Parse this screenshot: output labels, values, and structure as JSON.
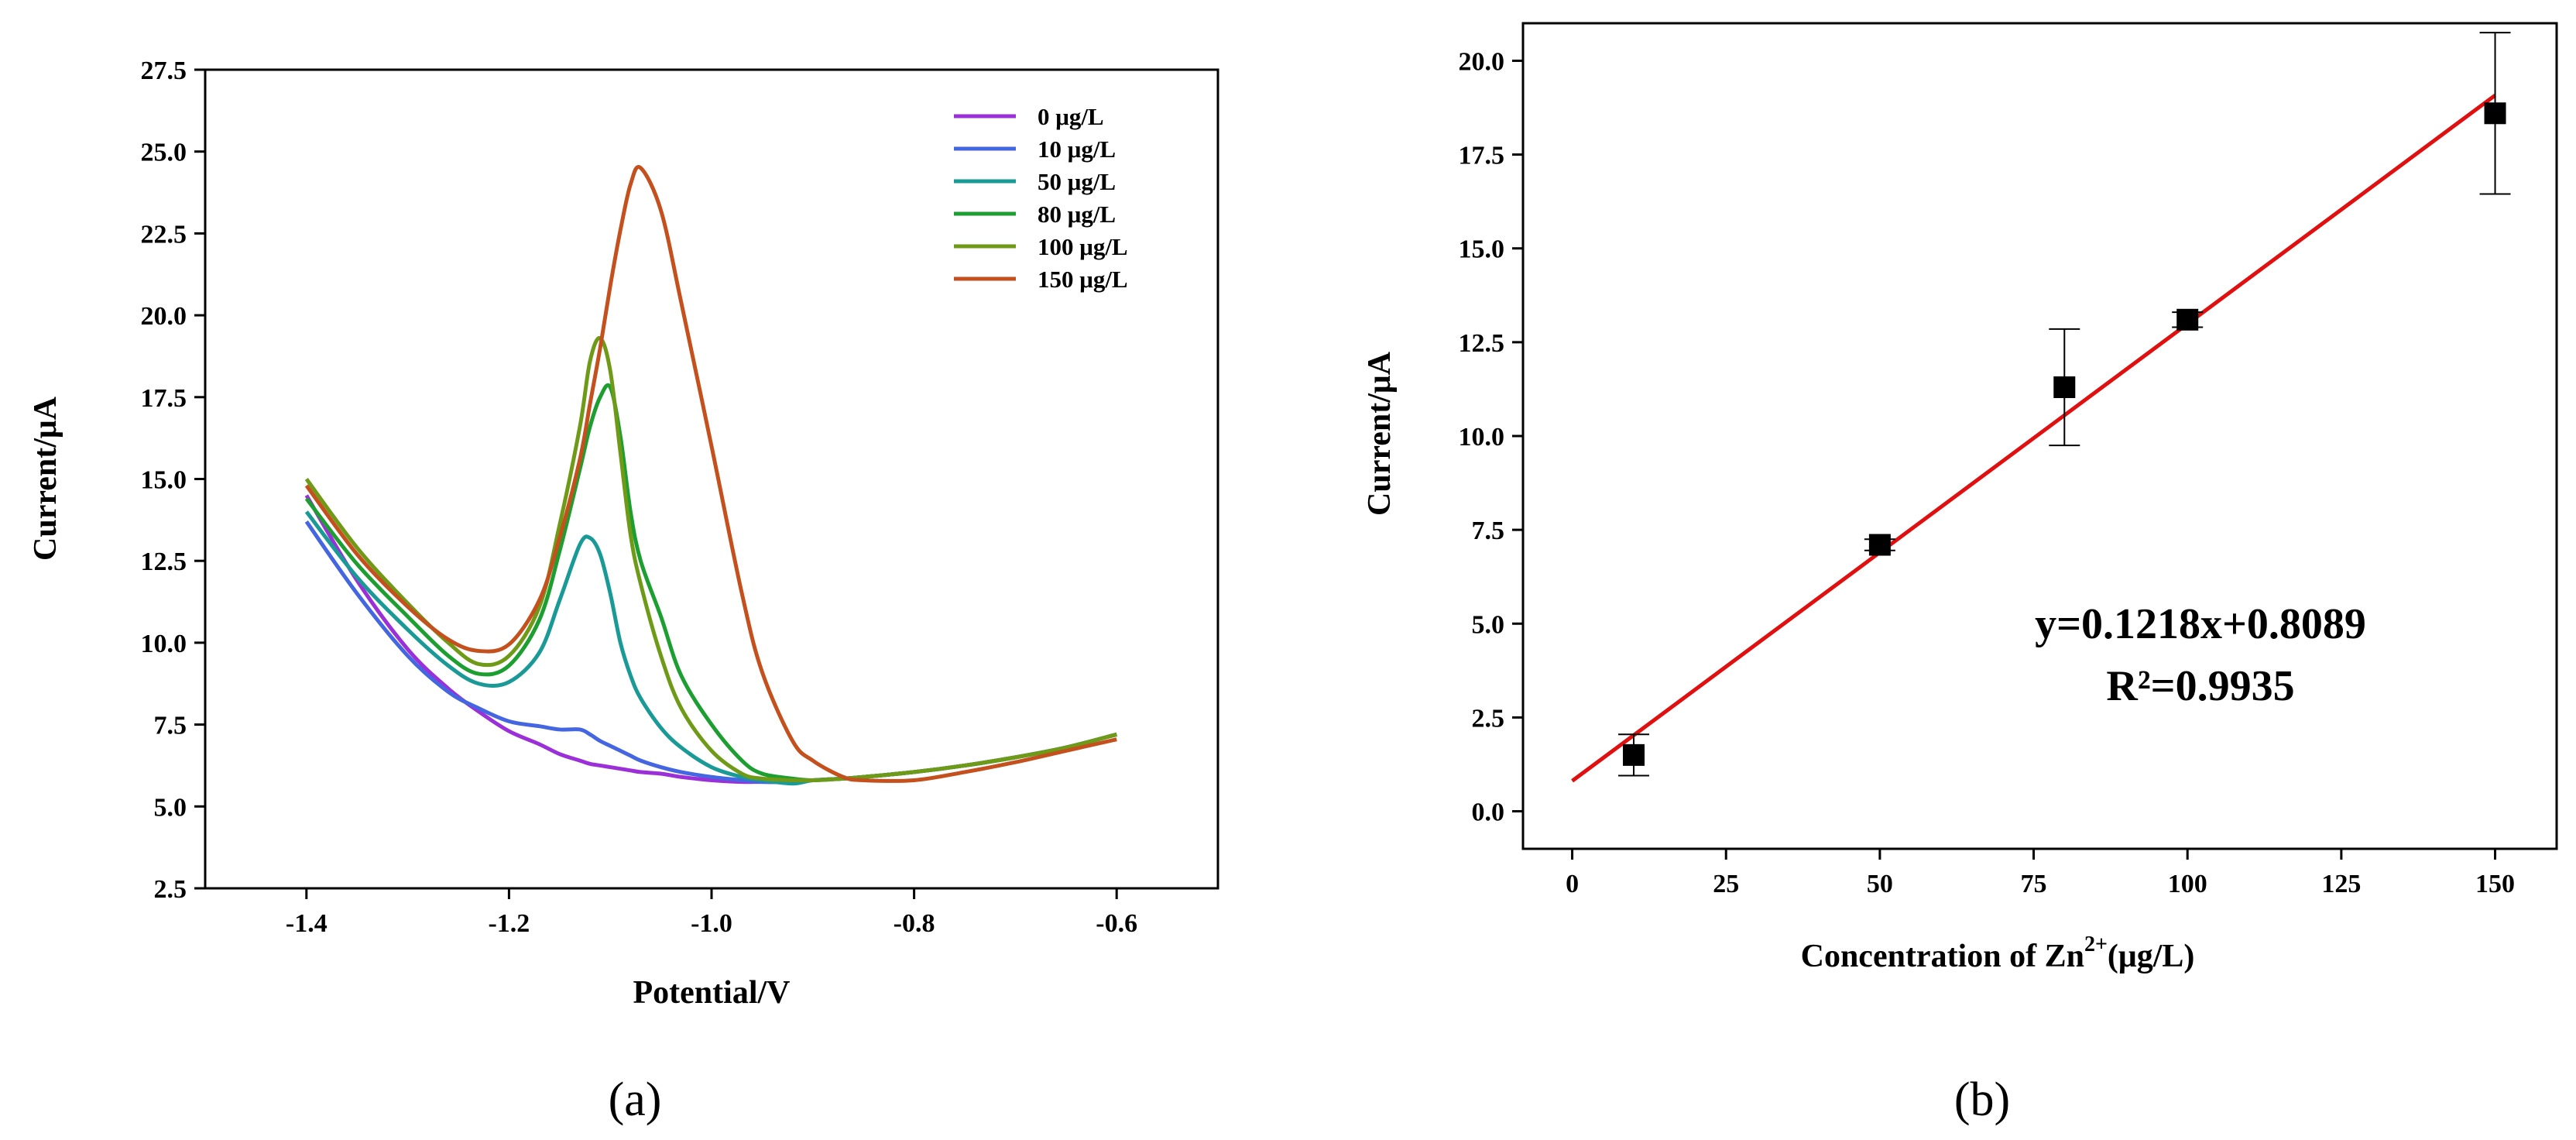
{
  "chart_data": [
    {
      "type": "line",
      "panel_label": "(a)",
      "xlabel": "Potential/V",
      "ylabel": "Current/μA",
      "xlim": [
        -1.5,
        -0.5
      ],
      "ylim": [
        2.5,
        27.5
      ],
      "xticks": [
        -1.4,
        -1.2,
        -1.0,
        -0.8,
        -0.6
      ],
      "xtick_labels": [
        "-1.4",
        "-1.2",
        "-1.0",
        "-0.8",
        "-0.6"
      ],
      "yticks": [
        2.5,
        5.0,
        7.5,
        10.0,
        12.5,
        15.0,
        17.5,
        20.0,
        22.5,
        25.0,
        27.5
      ],
      "ytick_labels": [
        "2.5",
        "5.0",
        "7.5",
        "10.0",
        "12.5",
        "15.0",
        "17.5",
        "20.0",
        "22.5",
        "25.0",
        "27.5"
      ],
      "legend_position": "top-right",
      "x": [
        -1.4,
        -1.35,
        -1.3,
        -1.26,
        -1.23,
        -1.2,
        -1.17,
        -1.15,
        -1.13,
        -1.12,
        -1.11,
        -1.1,
        -1.09,
        -1.08,
        -1.07,
        -1.05,
        -1.03,
        -1.0,
        -0.97,
        -0.95,
        -0.92,
        -0.9,
        -0.87,
        -0.85,
        -0.8,
        -0.75,
        -0.7,
        -0.65,
        -0.6
      ],
      "series": [
        {
          "name": "0  μg/L",
          "color": "#9b30d8",
          "values": [
            14.5,
            11.9,
            9.8,
            8.6,
            7.9,
            7.3,
            6.9,
            6.6,
            6.4,
            6.3,
            6.25,
            6.2,
            6.15,
            6.1,
            6.05,
            6.0,
            5.9,
            5.8,
            5.75,
            5.75,
            5.75,
            5.8,
            5.85,
            5.9,
            6.05,
            6.25,
            6.5,
            6.8,
            7.2
          ]
        },
        {
          "name": "10 μg/L",
          "color": "#4466e0",
          "values": [
            13.7,
            11.5,
            9.6,
            8.5,
            8.0,
            7.6,
            7.45,
            7.35,
            7.35,
            7.2,
            7.0,
            6.85,
            6.7,
            6.55,
            6.4,
            6.2,
            6.05,
            5.9,
            5.8,
            5.75,
            5.75,
            5.8,
            5.85,
            5.9,
            6.05,
            6.25,
            6.5,
            6.8,
            7.2
          ]
        },
        {
          "name": "50 μg/L",
          "color": "#1a9a96",
          "values": [
            14.0,
            12.0,
            10.4,
            9.3,
            8.75,
            8.8,
            9.7,
            11.3,
            13.0,
            13.2,
            12.7,
            11.5,
            10.0,
            9.0,
            8.3,
            7.4,
            6.8,
            6.2,
            5.9,
            5.8,
            5.7,
            5.8,
            5.85,
            5.9,
            6.05,
            6.25,
            6.5,
            6.8,
            7.2
          ]
        },
        {
          "name": "80 μg/L",
          "color": "#1c9e30",
          "values": [
            14.4,
            12.4,
            10.8,
            9.6,
            9.05,
            9.3,
            10.7,
            12.8,
            15.3,
            16.6,
            17.5,
            17.8,
            16.3,
            14.0,
            12.5,
            10.8,
            9.0,
            7.5,
            6.4,
            6.0,
            5.85,
            5.8,
            5.85,
            5.9,
            6.05,
            6.25,
            6.5,
            6.8,
            7.2
          ]
        },
        {
          "name": "100 μg/L",
          "color": "#6e9a18",
          "values": [
            15.0,
            12.9,
            11.2,
            10.0,
            9.35,
            9.6,
            11.1,
            13.6,
            16.6,
            18.6,
            19.3,
            18.3,
            15.8,
            13.3,
            11.8,
            9.6,
            8.0,
            6.7,
            6.0,
            5.85,
            5.8,
            5.8,
            5.85,
            5.9,
            6.05,
            6.25,
            6.5,
            6.8,
            7.2
          ]
        },
        {
          "name": "150 μg/L",
          "color": "#c4501e",
          "values": [
            14.8,
            12.7,
            11.1,
            10.1,
            9.75,
            9.95,
            11.3,
            13.2,
            15.6,
            17.3,
            19.0,
            20.9,
            22.6,
            24.0,
            24.5,
            23.2,
            20.4,
            16.0,
            11.5,
            9.1,
            7.0,
            6.4,
            5.9,
            5.8,
            5.8,
            6.05,
            6.35,
            6.7,
            7.05
          ]
        }
      ]
    },
    {
      "type": "scatter",
      "panel_label": "(b)",
      "xlabel": "Concentration of Zn",
      "xlabel_sup": "2+",
      "xlabel_unit": "(μg/L)",
      "ylabel": "Current/μA",
      "xlim": [
        -8,
        160
      ],
      "ylim": [
        -1.0,
        21.0
      ],
      "xticks": [
        0,
        25,
        50,
        75,
        100,
        125,
        150
      ],
      "xtick_labels": [
        "0",
        "25",
        "50",
        "75",
        "100",
        "125",
        "150"
      ],
      "yticks": [
        0.0,
        2.5,
        5.0,
        7.5,
        10.0,
        12.5,
        15.0,
        17.5,
        20.0
      ],
      "ytick_labels": [
        "0.0",
        "2.5",
        "5.0",
        "7.5",
        "10.0",
        "12.5",
        "15.0",
        "17.5",
        "20.0"
      ],
      "points": {
        "x": [
          10,
          50,
          80,
          100,
          150
        ],
        "y": [
          1.5,
          7.1,
          11.3,
          13.1,
          18.6
        ],
        "error": [
          0.55,
          0.15,
          1.55,
          0.2,
          2.15
        ]
      },
      "fit": {
        "slope": 0.1218,
        "intercept": 0.8089,
        "x_range": [
          0,
          150
        ],
        "color": "#e01010"
      },
      "equation": "y=0.1218x+0.8089",
      "r_squared": "R²=0.9935"
    }
  ]
}
